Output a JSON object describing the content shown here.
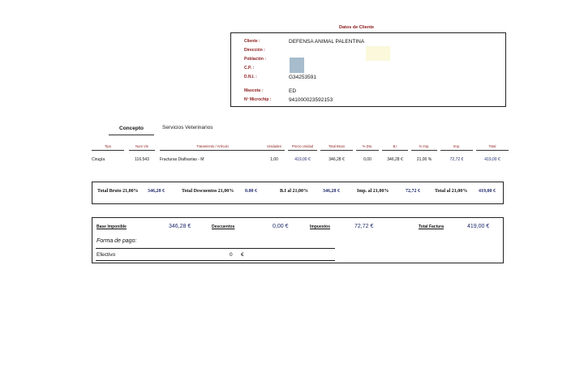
{
  "client": {
    "title": "Datos de Cliente",
    "fields": [
      {
        "label": "Cliente :",
        "value": "DEFENSA ANIMAL PALENTINA"
      },
      {
        "label": "Dirección :",
        "value": ""
      },
      {
        "label": "Población :",
        "value": ""
      },
      {
        "label": "C.P. :",
        "value": ""
      },
      {
        "label": "D.N.I. :",
        "value": "G34253591"
      },
      {
        "label": "Mascota :",
        "value": "ED"
      },
      {
        "label": "Nº Microchip :",
        "value": "941000023592153"
      }
    ]
  },
  "tabs": {
    "active": "Concepto",
    "other": "Servicios Veterinarios"
  },
  "lines": {
    "headers": [
      "Tipo",
      "Num Vis",
      "Tratamiento / Artículo",
      "Unidades",
      "Precio Unidad",
      "Total Bruto",
      "% Dto.",
      "B.I",
      "% Imp.",
      "Imp.",
      "Total"
    ],
    "rows": [
      [
        "Cirugía",
        "116.543",
        "Fracturas Diafisarias - M",
        "1,00",
        "419,00 €",
        "346,28 €",
        "0,00",
        "346,28 €",
        "21,00 %",
        "72,72 €",
        "419,00 €"
      ]
    ]
  },
  "totals": {
    "bruto_label": "Total Bruto 21,00%",
    "bruto_value": "346,28 €",
    "desc_label": "Total Descuentos 21,00%",
    "desc_value": "0.00 €",
    "bi_label": "B.I al 21,00%",
    "bi_value": "346,28 €",
    "imp_label": "Imp. al 21,00%",
    "imp_value": "72,72 €",
    "total_label": "Total al 21,00%",
    "total_value": "419,00 €"
  },
  "summary": {
    "base_label": "Base Imponible",
    "base_value": "346,28 €",
    "desc_label": "Descuentos",
    "desc_value": "0,00 €",
    "imp_label": "Impuestos",
    "imp_value": "72,72 €",
    "total_label": "Total Factura",
    "total_value": "419,00 €",
    "forma_label": "Forma de pago:",
    "method": "Efectivo",
    "amount": "0",
    "currency": "€"
  },
  "colors": {
    "label_red": "#8b1a1a",
    "value_navy": "#1f2a6b"
  }
}
